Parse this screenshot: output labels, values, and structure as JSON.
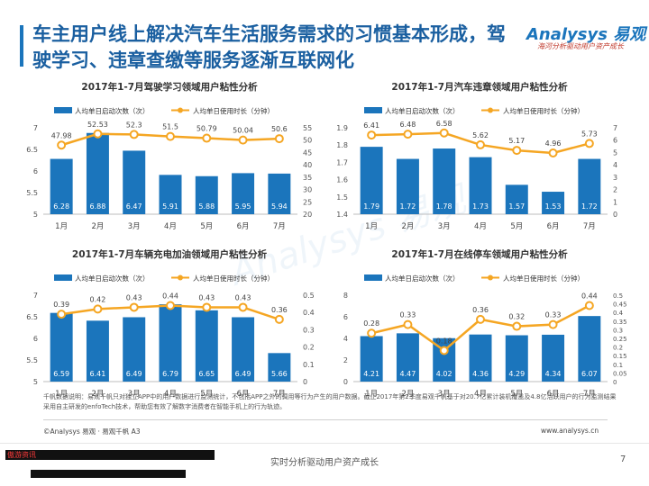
{
  "header": {
    "title": "车主用户线上解决汽车生活服务需求的习惯基本形成，驾驶学习、违章查缴等服务逐渐互联网化"
  },
  "logo": {
    "main": "Analysys 易观",
    "slogan": "海河分析驱动用户资产成长",
    "color": "#1b75bc"
  },
  "watermark": "Analysys 易观",
  "footer": {
    "note": "千帆数据说明：易观千帆只对独立APP中的用户数据进行监测统计，不包括APP之外的调用等行为产生的用户数据。截止2017年第2季度易观千帆基于对20.7亿累计装机覆盖及4.8亿活跃用户的行为监测结果采用自主研发的enfoTech技术，帮助您有效了解数字消费者在智能手机上的行为轨迹。",
    "copyright": "©Analysys 易观 · 易观千帆 A3",
    "website": "www.analysys.cn",
    "slogan": "实时分析驱动用户资产成长",
    "page_number": "7",
    "overlay_label": "傲游资讯"
  },
  "colors": {
    "bar": "#1b75bc",
    "line": "#f5a623",
    "title": "#1a5fa0"
  },
  "chart_data": [
    {
      "type": "bar",
      "title": "2017年1-7月驾驶学习领域用户粘性分析",
      "categories": [
        "1月",
        "2月",
        "3月",
        "4月",
        "5月",
        "6月",
        "7月"
      ],
      "series": [
        {
          "name": "人均单日启动次数（次）",
          "type": "bar",
          "axis": "left",
          "values": [
            6.28,
            6.88,
            6.47,
            5.91,
            5.88,
            5.95,
            5.94
          ],
          "labels": [
            "6.28",
            "6.88",
            "6.47",
            "5.91",
            "5.88",
            "5.95",
            "5.94"
          ]
        },
        {
          "name": "人均单日使用时长（分钟）",
          "type": "line",
          "axis": "right",
          "values": [
            47.98,
            52.53,
            52.3,
            51.5,
            50.79,
            50.04,
            50.6
          ],
          "labels": [
            "47.98",
            "52.53",
            "52.3",
            "51.5",
            "50.79",
            "50.04",
            "50.6"
          ]
        }
      ],
      "ylim_left": [
        5,
        7
      ],
      "yticks_left": [
        "5",
        "5.5",
        "6",
        "6.5",
        "7"
      ],
      "ylim_right": [
        20,
        55
      ],
      "yticks_right": [
        "20",
        "25",
        "30",
        "35",
        "40",
        "45",
        "50",
        "55"
      ]
    },
    {
      "type": "bar",
      "title": "2017年1-7月汽车违章领域用户粘性分析",
      "categories": [
        "1月",
        "2月",
        "3月",
        "4月",
        "5月",
        "6月",
        "7月"
      ],
      "series": [
        {
          "name": "人均单日启动次数（次）",
          "type": "bar",
          "axis": "left",
          "values": [
            1.79,
            1.72,
            1.78,
            1.73,
            1.57,
            1.53,
            1.72
          ],
          "labels": [
            "1.79",
            "1.72",
            "1.78",
            "1.73",
            "1.57",
            "1.53",
            "1.72"
          ]
        },
        {
          "name": "人均单日使用时长（分钟）",
          "type": "line",
          "axis": "right",
          "values": [
            6.41,
            6.48,
            6.58,
            5.62,
            5.17,
            4.96,
            5.73
          ],
          "labels": [
            "6.41",
            "6.48",
            "6.58",
            "5.62",
            "5.17",
            "4.96",
            "5.73"
          ]
        }
      ],
      "ylim_left": [
        1.4,
        1.9
      ],
      "yticks_left": [
        "1.4",
        "1.5",
        "1.6",
        "1.7",
        "1.8",
        "1.9"
      ],
      "ylim_right": [
        0,
        7
      ],
      "yticks_right": [
        "0",
        "1",
        "2",
        "3",
        "4",
        "5",
        "6",
        "7"
      ]
    },
    {
      "type": "bar",
      "title": "2017年1-7月车辆充电加油领域用户粘性分析",
      "categories": [
        "1月",
        "2月",
        "3月",
        "4月",
        "5月",
        "6月",
        "7月"
      ],
      "series": [
        {
          "name": "人均单日启动次数（次）",
          "type": "bar",
          "axis": "left",
          "values": [
            6.59,
            6.41,
            6.49,
            6.79,
            6.65,
            6.49,
            5.66
          ],
          "labels": [
            "6.59",
            "6.41",
            "6.49",
            "6.79",
            "6.65",
            "6.49",
            "5.66"
          ]
        },
        {
          "name": "人均单日使用时长（分钟）",
          "type": "line",
          "axis": "right",
          "values": [
            0.39,
            0.42,
            0.43,
            0.44,
            0.43,
            0.43,
            0.36
          ],
          "labels": [
            "0.39",
            "0.42",
            "0.43",
            "0.44",
            "0.43",
            "0.43",
            "0.36"
          ]
        }
      ],
      "ylim_left": [
        5,
        7
      ],
      "yticks_left": [
        "5",
        "5.5",
        "6",
        "6.5",
        "7"
      ],
      "ylim_right": [
        0,
        0.5
      ],
      "yticks_right": [
        "0",
        "0.1",
        "0.2",
        "0.3",
        "0.4",
        "0.5"
      ]
    },
    {
      "type": "bar",
      "title": "2017年1-7月在线停车领域用户粘性分析",
      "categories": [
        "1月",
        "2月",
        "3月",
        "4月",
        "5月",
        "6月",
        "7月"
      ],
      "series": [
        {
          "name": "人均单日启动次数（次）",
          "type": "bar",
          "axis": "left",
          "values": [
            4.21,
            4.47,
            4.02,
            4.36,
            4.29,
            4.34,
            6.07
          ],
          "labels": [
            "4.21",
            "4.47",
            "4.02",
            "4.36",
            "4.29",
            "4.34",
            "6.07"
          ]
        },
        {
          "name": "人均单日使用时长（分钟）",
          "type": "line",
          "axis": "right",
          "values": [
            0.28,
            0.33,
            0.18,
            0.36,
            0.32,
            0.33,
            0.44
          ],
          "labels": [
            "0.28",
            "0.33",
            "0.18",
            "0.36",
            "0.32",
            "0.33",
            "0.44"
          ]
        }
      ],
      "ylim_left": [
        0,
        8
      ],
      "yticks_left": [
        "0",
        "2",
        "4",
        "6",
        "8"
      ],
      "ylim_right": [
        0,
        0.5
      ],
      "yticks_right": [
        "0",
        "0.05",
        "0.1",
        "0.15",
        "0.2",
        "0.25",
        "0.3",
        "0.35",
        "0.4",
        "0.45",
        "0.5"
      ]
    }
  ]
}
